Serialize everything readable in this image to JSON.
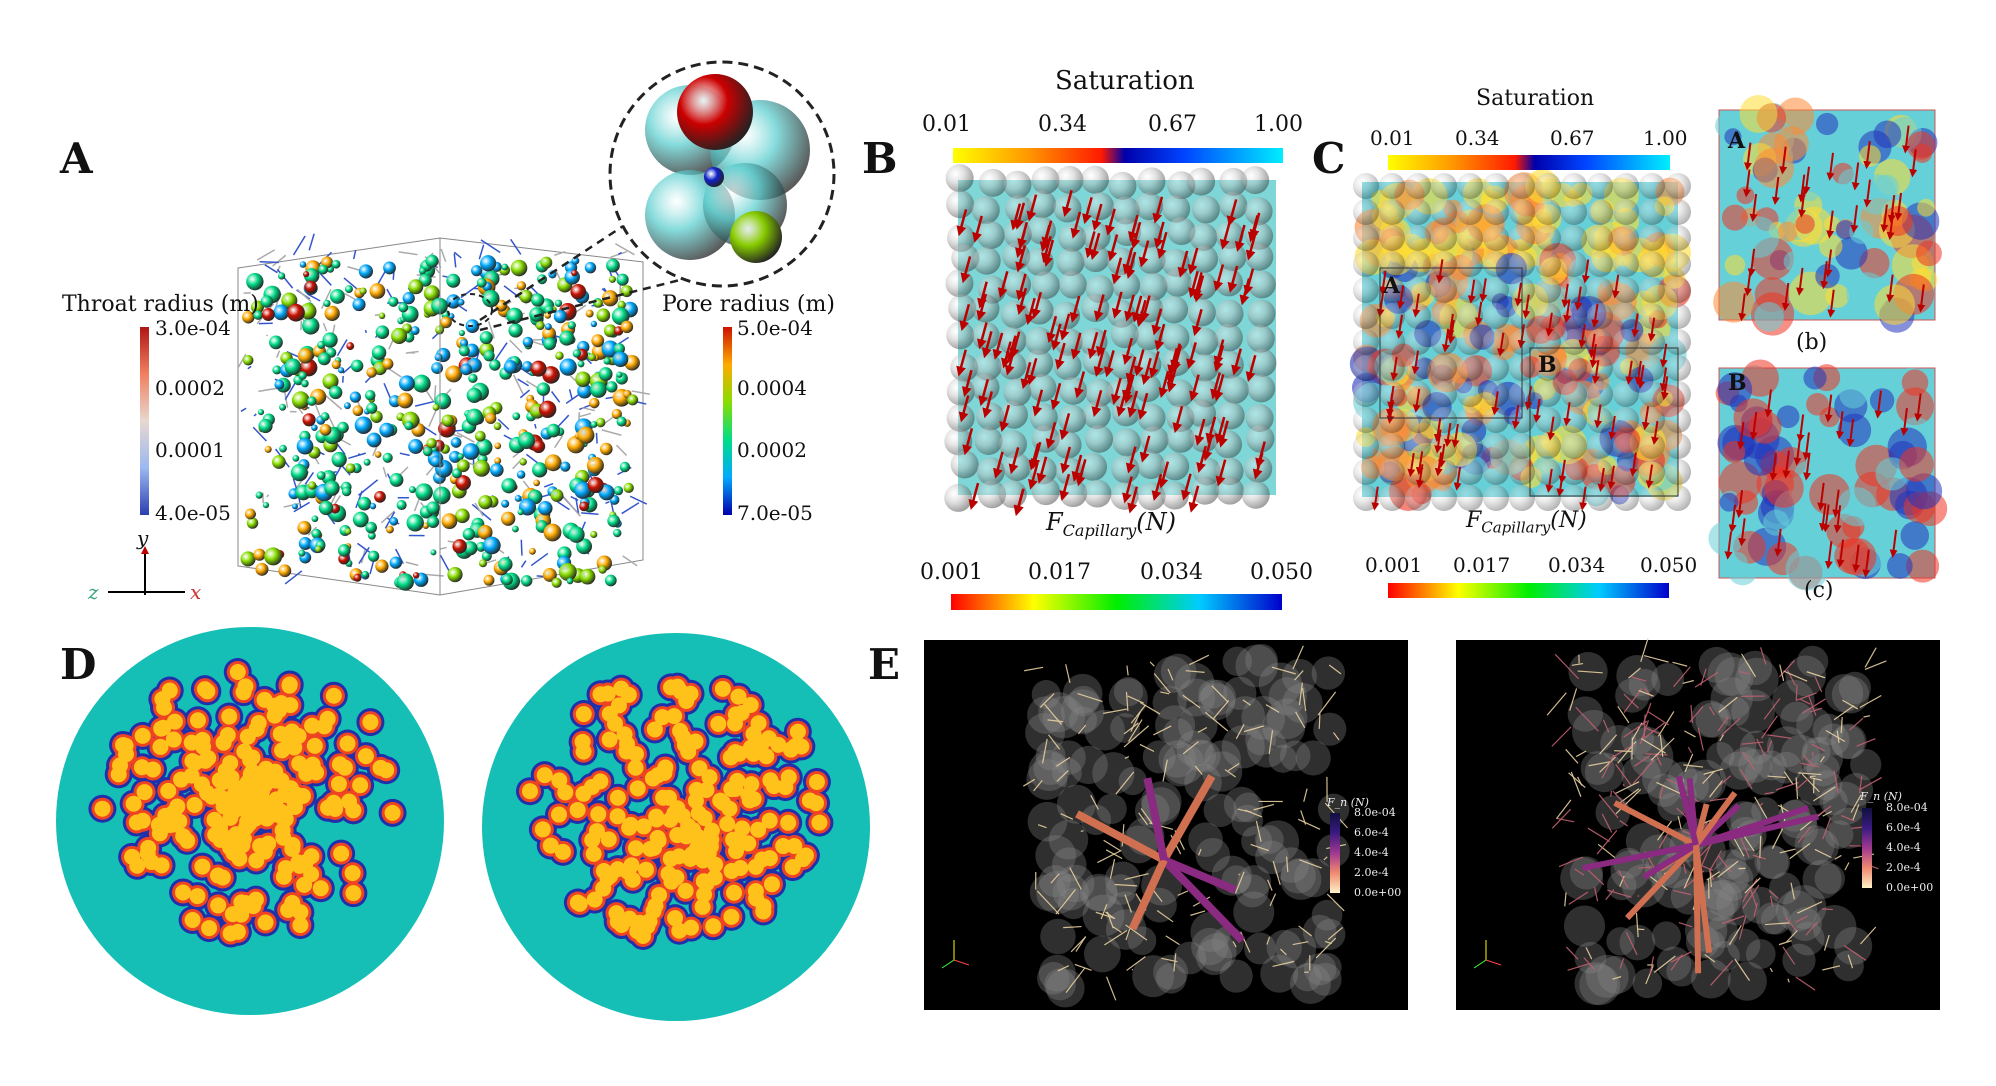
{
  "panels": {
    "A": {
      "label": "A",
      "throat_legend": {
        "title": "Throat radius (m)",
        "ticks": [
          "3.0e-04",
          "0.0002",
          "0.0001",
          "4.0e-05"
        ]
      },
      "pore_legend": {
        "title": "Pore radius (m)",
        "ticks": [
          "5.0e-04",
          "0.0004",
          "0.0002",
          "7.0e-05"
        ]
      },
      "axes": {
        "y": "y",
        "z": "z",
        "x": "x"
      }
    },
    "B": {
      "label": "B",
      "saturation": {
        "title": "Saturation",
        "ticks": [
          "0.01",
          "0.34",
          "0.67",
          "1.00"
        ]
      },
      "force_label": "F",
      "force_sub": "Capillary",
      "force_unit": "(N)",
      "force_ticks": [
        "0.001",
        "0.017",
        "0.034",
        "0.050"
      ]
    },
    "C": {
      "label": "C",
      "saturation": {
        "title": "Saturation",
        "ticks": [
          "0.01",
          "0.34",
          "0.67",
          "1.00"
        ]
      },
      "force_label": "F",
      "force_sub": "Capillary",
      "force_unit": "(N)",
      "force_ticks": [
        "0.001",
        "0.017",
        "0.034",
        "0.050"
      ],
      "region_a": "A",
      "region_b": "B",
      "sub_b": {
        "tag": "A",
        "caption": "(b)"
      },
      "sub_c": {
        "tag": "B",
        "caption": "(c)"
      }
    },
    "D": {
      "label": "D"
    },
    "E": {
      "label": "E",
      "legend": {
        "title": "F_n (N)",
        "ticks": [
          "8.0e-04",
          "6.0e-4",
          "4.0e-4",
          "2.0e-4",
          "0.0e+00"
        ]
      }
    }
  },
  "colors": {
    "saturation": [
      "#ffff00",
      "#ff9900",
      "#ff1a00",
      "#0000aa",
      "#0044ff",
      "#00eeff"
    ],
    "force": [
      "#ff0000",
      "#ffff00",
      "#00ee00",
      "#00ccff",
      "#0000cc"
    ],
    "throat": [
      "#2b3fb0",
      "#9bb8f0",
      "#e8d8d0",
      "#f08060",
      "#b01515"
    ],
    "pore": [
      "#0000aa",
      "#00aaff",
      "#00dd88",
      "#88dd00",
      "#ffaa00",
      "#cc1100"
    ],
    "fn": [
      "#fff2c8",
      "#f08a70",
      "#a03890",
      "#3a1a80",
      "#101040"
    ],
    "teal": "#16bfb5"
  }
}
